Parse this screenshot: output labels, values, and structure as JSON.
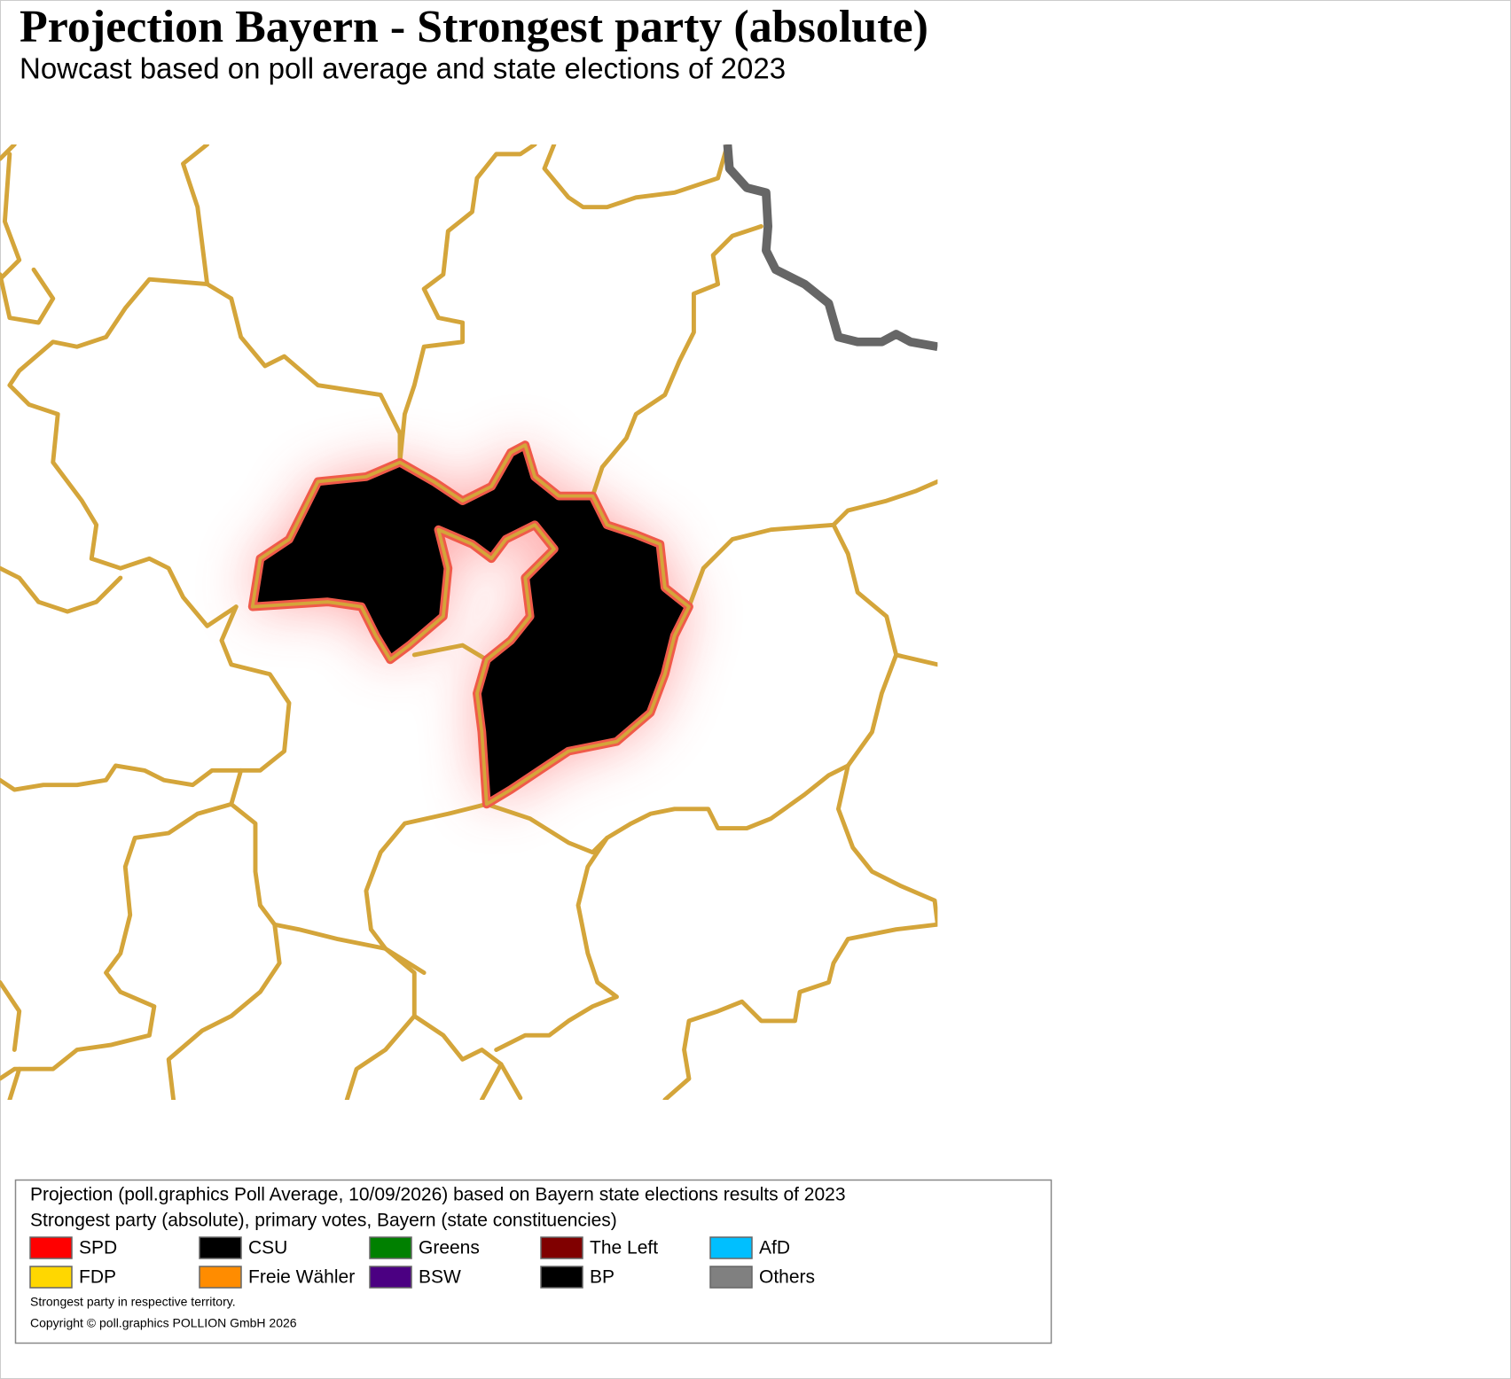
{
  "header": {
    "title": "Projection Bayern - Strongest party (absolute)",
    "subtitle": "Nowcast based on poll average and state elections of 2023"
  },
  "legend": {
    "lines": [
      "Projection (poll.graphics Poll Average, 10/09/2026) based on Bayern state elections results of 2023",
      "Strongest party (absolute), primary votes, Bayern (state constituencies)"
    ],
    "items": [
      {
        "name": "SPD",
        "color": "#ff0000"
      },
      {
        "name": "CSU",
        "color": "#000000"
      },
      {
        "name": "Greens",
        "color": "#008000"
      },
      {
        "name": "The Left",
        "color": "#800000"
      },
      {
        "name": "AfD",
        "color": "#00bfff"
      },
      {
        "name": "FDP",
        "color": "#ffd700"
      },
      {
        "name": "Freie Wähler",
        "color": "#ff8c00"
      },
      {
        "name": "BSW",
        "color": "#4b0082"
      },
      {
        "name": "BP",
        "color": "#000000"
      },
      {
        "name": "Others",
        "color": "#808080"
      }
    ],
    "notes": [
      "Strongest party in respective territory.",
      "Copyright © poll.graphics POLLION GmbH 2026"
    ]
  }
}
